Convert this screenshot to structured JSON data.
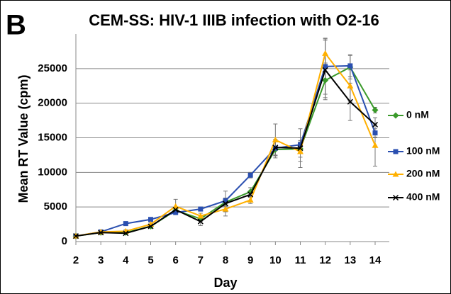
{
  "chart_data": {
    "type": "line",
    "panel_label": "B",
    "title": "CEM-SS: HIV-1 IIIB infection with O2-16",
    "x_label": "Day",
    "y_label": "Mean RT Value (cpm)",
    "x": [
      2,
      3,
      4,
      5,
      6,
      7,
      8,
      9,
      10,
      11,
      12,
      13,
      14
    ],
    "xlim": [
      2,
      14
    ],
    "xticks": [
      2,
      3,
      4,
      5,
      6,
      7,
      8,
      9,
      10,
      11,
      12,
      13,
      14
    ],
    "ylim": [
      0,
      30000
    ],
    "yticks": [
      0,
      5000,
      10000,
      15000,
      20000,
      25000
    ],
    "grid": true,
    "legend": "right",
    "series": [
      {
        "name": "0 nM",
        "color": "#3a9a2a",
        "marker": "diamond",
        "values": [
          800,
          1300,
          1300,
          2200,
          4500,
          3300,
          5700,
          7200,
          13300,
          13400,
          23300,
          25200,
          19000
        ],
        "errors": [
          100,
          200,
          200,
          200,
          300,
          400,
          500,
          600,
          1200,
          1200,
          2500,
          1700,
          400
        ]
      },
      {
        "name": "100 nM",
        "color": "#2a4fb0",
        "marker": "square",
        "values": [
          800,
          1400,
          2600,
          3200,
          4200,
          4700,
          5900,
          9600,
          13500,
          14000,
          25300,
          25400,
          15700
        ],
        "errors": [
          100,
          200,
          200,
          200,
          300,
          300,
          400,
          400,
          1000,
          1000,
          4000,
          1600,
          600
        ]
      },
      {
        "name": "200 nM",
        "color": "#ffb000",
        "marker": "triangle",
        "values": [
          800,
          1400,
          1500,
          2500,
          5100,
          3700,
          4700,
          6000,
          14700,
          13000,
          27200,
          22500,
          13900
        ],
        "errors": [
          100,
          200,
          200,
          200,
          1000,
          400,
          400,
          500,
          2300,
          1400,
          2200,
          2300,
          3000
        ]
      },
      {
        "name": "400 nM",
        "color": "#000000",
        "marker": "x",
        "values": [
          800,
          1300,
          1200,
          2200,
          4600,
          2900,
          5500,
          6800,
          13600,
          13500,
          24800,
          20200,
          16900
        ],
        "errors": [
          100,
          200,
          200,
          200,
          400,
          600,
          1800,
          400,
          1200,
          2800,
          4300,
          2700,
          1000
        ]
      }
    ]
  }
}
